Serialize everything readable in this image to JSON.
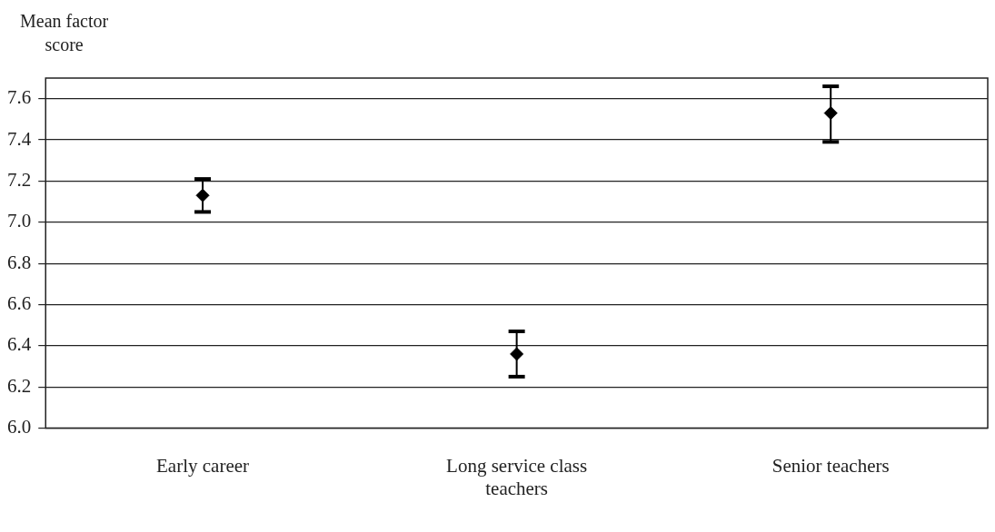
{
  "chart_data": {
    "type": "scatter",
    "ylabel": "Mean factor score",
    "categories": [
      "Early career",
      "Long service class teachers",
      "Senior teachers"
    ],
    "values": [
      7.13,
      6.36,
      7.53
    ],
    "errors": [
      [
        7.05,
        7.21
      ],
      [
        6.25,
        6.47
      ],
      [
        7.39,
        7.66
      ]
    ],
    "color": "#000000",
    "marker": "diamond",
    "ylim": [
      6.0,
      7.7
    ],
    "yticks": [
      {
        "value": 6.0,
        "label": "6.0"
      },
      {
        "value": 6.2,
        "label": "6.2"
      },
      {
        "value": 6.4,
        "label": "6.4"
      },
      {
        "value": 6.6,
        "label": "6.6"
      },
      {
        "value": 6.8,
        "label": "6.8"
      },
      {
        "value": 7.0,
        "label": "7.0"
      },
      {
        "value": 7.2,
        "label": "7.2"
      },
      {
        "value": 7.4,
        "label": "7.4"
      },
      {
        "value": 7.6,
        "label": "7.6"
      }
    ],
    "grid": "y",
    "legend": false
  }
}
